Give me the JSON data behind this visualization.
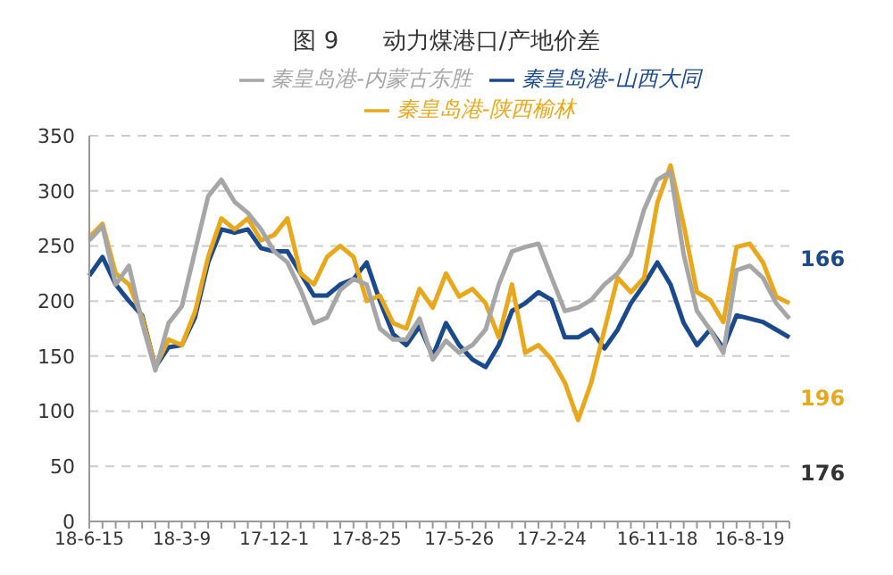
{
  "chart_data": {
    "type": "line",
    "title": "图 9      动力煤港口/产地价差",
    "categories": [
      "18-6-15",
      null,
      null,
      null,
      null,
      null,
      null,
      "18-3-9",
      null,
      null,
      null,
      null,
      null,
      null,
      "17-12-1",
      null,
      null,
      null,
      null,
      null,
      null,
      "17-8-25",
      null,
      null,
      null,
      null,
      null,
      null,
      "17-5-26",
      null,
      null,
      null,
      null,
      null,
      null,
      "17-2-24",
      null,
      null,
      null,
      null,
      null,
      null,
      null,
      "16-11-18",
      null,
      null,
      null,
      null,
      null,
      null,
      "16-8-19",
      null,
      null,
      null
    ],
    "series": [
      {
        "name": "秦皇岛港-山西大同",
        "color": "#1b4a8c",
        "values": [
          223,
          240,
          215,
          200,
          187,
          140,
          158,
          160,
          185,
          235,
          265,
          262,
          265,
          248,
          245,
          245,
          225,
          205,
          205,
          215,
          220,
          235,
          200,
          170,
          160,
          177,
          150,
          180,
          160,
          147,
          140,
          160,
          191,
          198,
          208,
          201,
          167,
          167,
          174,
          157,
          174,
          198,
          215,
          235,
          215,
          180,
          160,
          174,
          157,
          187,
          184,
          181,
          174,
          167
        ]
      },
      {
        "name": "秦皇岛港-陕西榆林",
        "color": "#e8a81c",
        "values": [
          258,
          270,
          225,
          215,
          185,
          140,
          165,
          160,
          190,
          240,
          275,
          265,
          275,
          255,
          260,
          275,
          225,
          215,
          240,
          250,
          240,
          200,
          205,
          180,
          175,
          211,
          194,
          225,
          204,
          211,
          198,
          167,
          215,
          153,
          160,
          147,
          126,
          92,
          126,
          174,
          221,
          208,
          221,
          289,
          323,
          269,
          208,
          201,
          181,
          249,
          252,
          235,
          204,
          198
        ]
      },
      {
        "name": "秦皇岛港-内蒙古东胜",
        "color": "#a6a6a6",
        "values": [
          255,
          268,
          215,
          232,
          180,
          137,
          180,
          195,
          245,
          295,
          310,
          290,
          280,
          265,
          245,
          235,
          210,
          180,
          185,
          210,
          220,
          215,
          175,
          165,
          165,
          184,
          147,
          164,
          153,
          160,
          174,
          215,
          245,
          249,
          252,
          221,
          191,
          194,
          201,
          215,
          225,
          242,
          283,
          310,
          317,
          242,
          191,
          174,
          153,
          228,
          232,
          221,
          198,
          184
        ]
      }
    ],
    "ylim": [
      0,
      350
    ],
    "yticks": [
      0,
      50,
      100,
      150,
      200,
      250,
      300,
      350
    ],
    "grid": "y",
    "legend": "top",
    "marker": "none",
    "line_style": "solid",
    "annotations": [
      "166",
      "196",
      "176"
    ]
  }
}
